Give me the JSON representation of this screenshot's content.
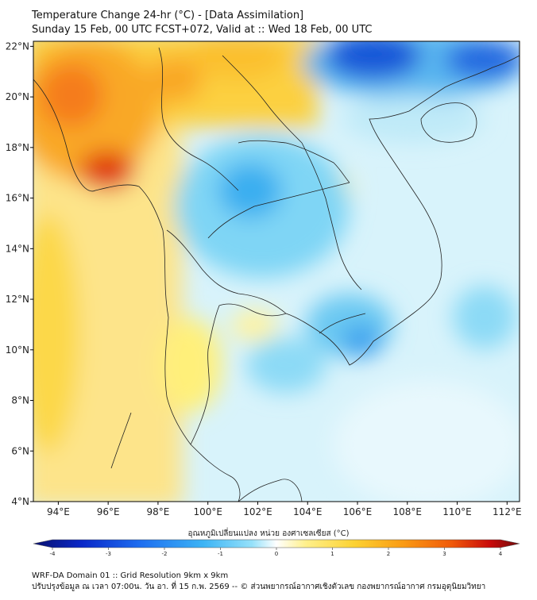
{
  "header": {
    "title": "Temperature Change 24-hr (°C) - [Data Assimilation]",
    "subtitle": "Sunday 15 Feb, 00 UTC FCST+072, Valid at :: Wed 18 Feb, 00 UTC"
  },
  "map": {
    "lat_labels": [
      "22°N",
      "20°N",
      "18°N",
      "16°N",
      "14°N",
      "12°N",
      "10°N",
      "8°N",
      "6°N",
      "4°N"
    ],
    "lon_labels": [
      "94°E",
      "96°E",
      "98°E",
      "100°E",
      "102°E",
      "104°E",
      "106°E",
      "108°E",
      "110°E",
      "112°E"
    ],
    "lat_range": [
      4,
      22.2
    ],
    "lon_range": [
      93,
      112.5
    ]
  },
  "colorbar": {
    "title": "อุณหภูมิเปลี่ยนแปลง หน่วย องศาเซลเซียส (°C)",
    "ticks": [
      "-4",
      "-3",
      "-2",
      "-1",
      "0",
      "1",
      "2",
      "3",
      "4"
    ],
    "colors": [
      "#08106e",
      "#0a28c8",
      "#1e6ef0",
      "#3cb4f5",
      "#96e1fa",
      "#ffffff",
      "#fff08c",
      "#fcd232",
      "#fa9b14",
      "#f05a0a",
      "#c80a0a",
      "#6e0a0a"
    ]
  },
  "footer": {
    "line1": "WRF-DA Domain 01 :: Grid Resolution 9km x 9km",
    "line2": "ปรับปรุงข้อมูล ณ เวลา 07:00น. วัน อา. ที่ 15 ก.พ. 2569 -- © ส่วนพยากรณ์อากาศเชิงตัวเลข กองพยากรณ์อากาศ กรมอุตุนิยมวิทยา"
  }
}
